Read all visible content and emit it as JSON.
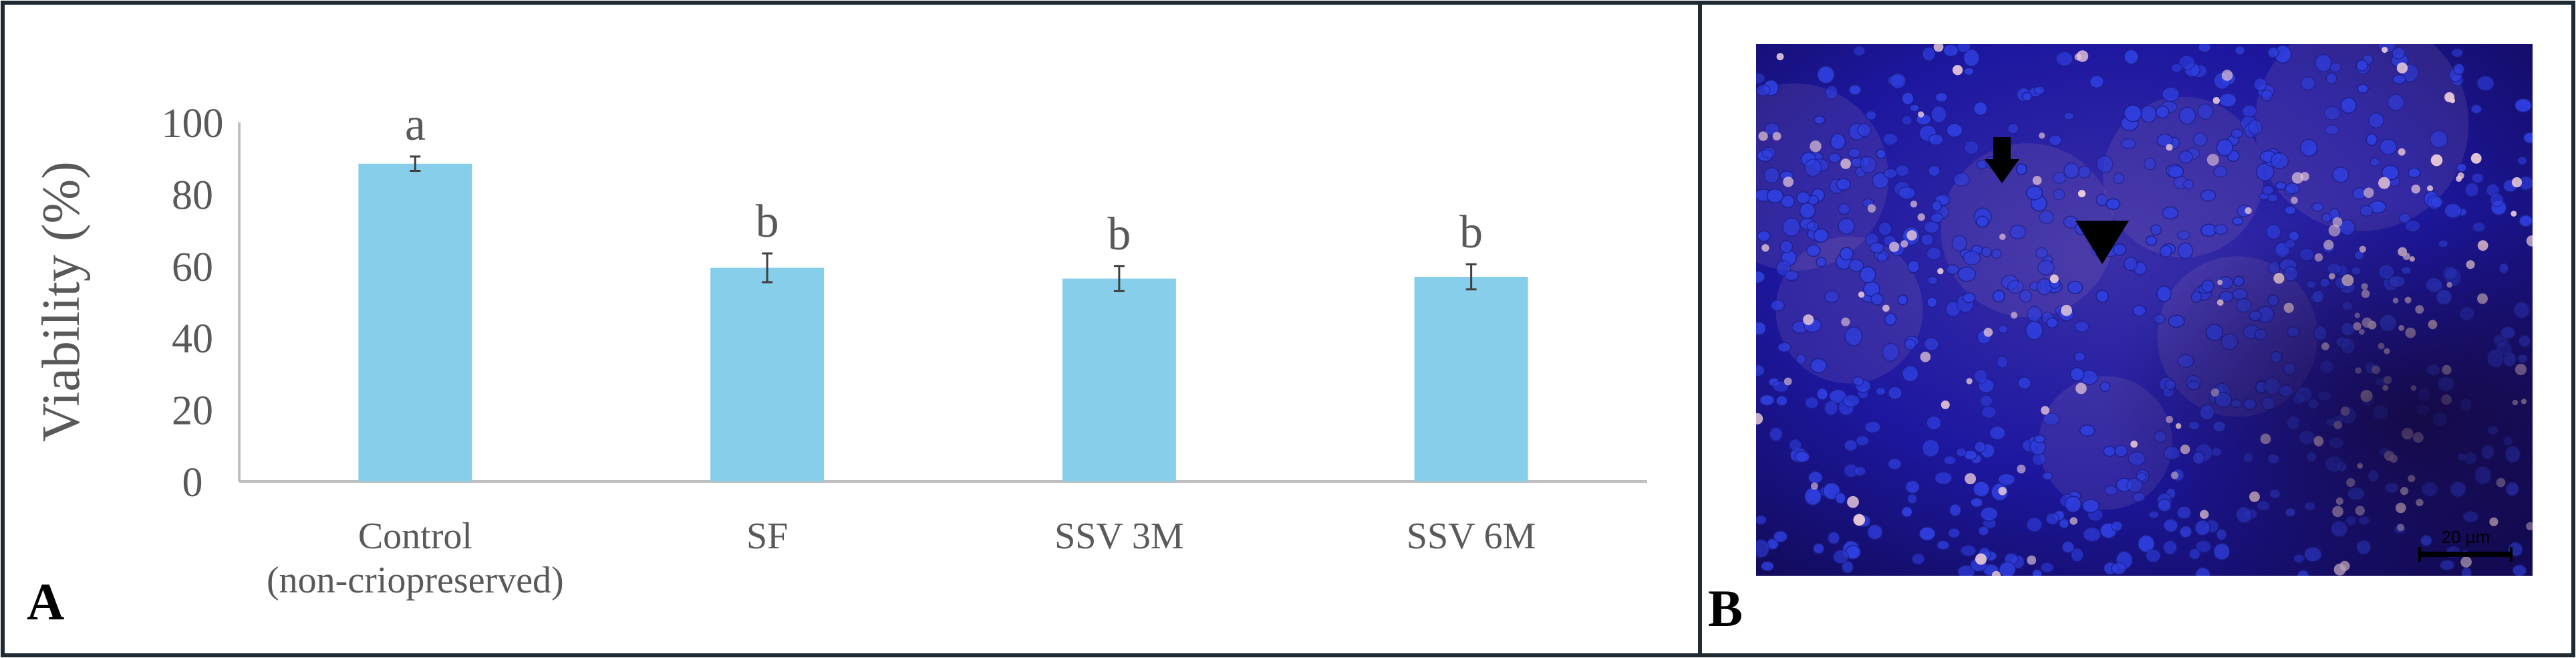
{
  "panels": {
    "a_label": "A",
    "b_label": "B"
  },
  "chart_data": {
    "type": "bar",
    "categories": [
      "Control\n(non-criopreserved)",
      "SF",
      "SSV 3M",
      "SSV 6M"
    ],
    "values": [
      88.5,
      59.5,
      56.5,
      57
    ],
    "errors": [
      2,
      4,
      3.5,
      3.5
    ],
    "significance_letters": [
      "a",
      "b",
      "b",
      "b"
    ],
    "ylabel": "Viability (%)",
    "xlabel": "",
    "title": "",
    "ylim": [
      0,
      100
    ],
    "yticks": [
      0,
      20,
      40,
      60,
      80,
      100
    ],
    "grid": false,
    "bar_color": "#87CEEB"
  },
  "micrograph": {
    "scale_bar_label": "20 µm",
    "background_color": "#1a1aa6",
    "nuclei_color": "#2f3fe0",
    "bright_cell_color": "#e8c9d8"
  }
}
